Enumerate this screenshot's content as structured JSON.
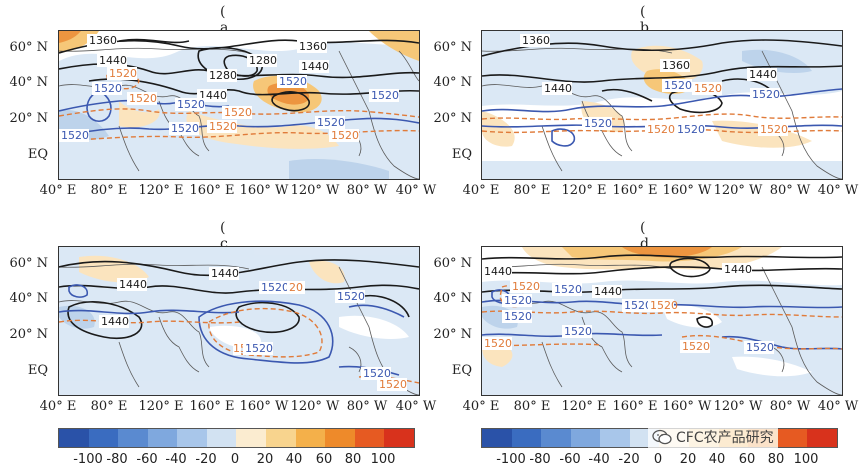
{
  "panels": [
    {
      "id": "a",
      "label": "( a )"
    },
    {
      "id": "b",
      "label": "( b )"
    },
    {
      "id": "c",
      "label": "( c )"
    },
    {
      "id": "d",
      "label": "( d )"
    }
  ],
  "lat_labels": [
    "60° N",
    "40° N",
    "20° N",
    "EQ"
  ],
  "lon_labels": [
    "40° E",
    "80° E",
    "120° E",
    "160° E",
    "160° W",
    "120° W",
    "80° W",
    "40° W"
  ],
  "contours": {
    "a": {
      "black": [
        "1360",
        "1440",
        "1280",
        "1280",
        "1360",
        "1440",
        "1440"
      ],
      "blue": [
        "1520",
        "1520",
        "1520",
        "1520",
        "1520",
        "1520",
        "1520"
      ],
      "orange": [
        "1520",
        "1520",
        "1520",
        "1520",
        "1520"
      ]
    },
    "b": {
      "black": [
        "1360",
        "1440",
        "1360",
        "1440"
      ],
      "blue": [
        "1520",
        "1520",
        "1520",
        "1520"
      ],
      "orange": [
        "1520",
        "1520",
        "1520"
      ]
    },
    "c": {
      "black": [
        "1440",
        "1440",
        "1440"
      ],
      "blue": [
        "1520",
        "1520",
        "1520",
        "1520"
      ],
      "orange": [
        "20",
        "1520",
        "1520"
      ]
    },
    "d": {
      "black": [
        "1440",
        "1440",
        "1440"
      ],
      "blue": [
        "1520",
        "1520",
        "1520",
        "1520",
        "1520",
        "1520"
      ],
      "orange": [
        "1520",
        "1520",
        "1520",
        "1520"
      ]
    }
  },
  "colorbar": {
    "colors": [
      "#2a52a8",
      "#3a6cc0",
      "#5a8ad0",
      "#7fa8de",
      "#a8c6ea",
      "#d2e2f2",
      "#fbecd0",
      "#f8d48e",
      "#f4b04a",
      "#ee8a2a",
      "#e65a22",
      "#d8321c"
    ],
    "ticks": [
      "-100",
      "-80",
      "-60",
      "-40",
      "-20",
      "0",
      "20",
      "40",
      "60",
      "80",
      "100"
    ]
  },
  "watermark": "CFC农产品研究",
  "watermark_icon": "wechat-icon",
  "anomaly_colors": {
    "pos_light": "#fbe2b8",
    "pos_mid": "#f6c26a",
    "pos_strong": "#ec8a2c",
    "neg_light": "#d8e6f4",
    "neg_mid": "#b6cfe9",
    "black": "#1a1a1a",
    "blue_contour": "#3b58b0",
    "orange_contour": "#e07b3a"
  }
}
